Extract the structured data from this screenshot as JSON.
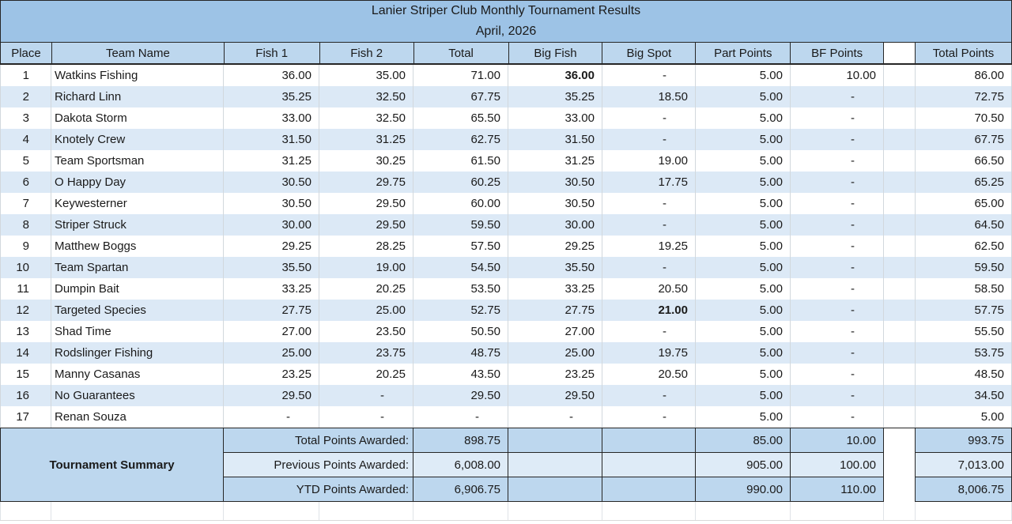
{
  "title": {
    "line1": "Lanier Striper Club Monthly Tournament Results",
    "line2": "April, 2026"
  },
  "columns": [
    "Place",
    "Team Name",
    "Fish 1",
    "Fish 2",
    "Total",
    "Big Fish",
    "Big Spot",
    "Part Points",
    "BF Points",
    "",
    "Total Points"
  ],
  "rows": [
    {
      "place": "1",
      "team": "Watkins Fishing",
      "fish1": "36.00",
      "fish2": "35.00",
      "total": "71.00",
      "big_fish": "36.00",
      "big_spot": "-",
      "part_points": "5.00",
      "bf_points": "10.00",
      "total_points": "86.00",
      "bold": [
        "big_fish"
      ]
    },
    {
      "place": "2",
      "team": "Richard Linn",
      "fish1": "35.25",
      "fish2": "32.50",
      "total": "67.75",
      "big_fish": "35.25",
      "big_spot": "18.50",
      "part_points": "5.00",
      "bf_points": "-",
      "total_points": "72.75",
      "bold": []
    },
    {
      "place": "3",
      "team": "Dakota Storm",
      "fish1": "33.00",
      "fish2": "32.50",
      "total": "65.50",
      "big_fish": "33.00",
      "big_spot": "-",
      "part_points": "5.00",
      "bf_points": "-",
      "total_points": "70.50",
      "bold": []
    },
    {
      "place": "4",
      "team": "Knotely Crew",
      "fish1": "31.50",
      "fish2": "31.25",
      "total": "62.75",
      "big_fish": "31.50",
      "big_spot": "-",
      "part_points": "5.00",
      "bf_points": "-",
      "total_points": "67.75",
      "bold": []
    },
    {
      "place": "5",
      "team": "Team Sportsman",
      "fish1": "31.25",
      "fish2": "30.25",
      "total": "61.50",
      "big_fish": "31.25",
      "big_spot": "19.00",
      "part_points": "5.00",
      "bf_points": "-",
      "total_points": "66.50",
      "bold": []
    },
    {
      "place": "6",
      "team": "O Happy Day",
      "fish1": "30.50",
      "fish2": "29.75",
      "total": "60.25",
      "big_fish": "30.50",
      "big_spot": "17.75",
      "part_points": "5.00",
      "bf_points": "-",
      "total_points": "65.25",
      "bold": []
    },
    {
      "place": "7",
      "team": "Keywesterner",
      "fish1": "30.50",
      "fish2": "29.50",
      "total": "60.00",
      "big_fish": "30.50",
      "big_spot": "-",
      "part_points": "5.00",
      "bf_points": "-",
      "total_points": "65.00",
      "bold": []
    },
    {
      "place": "8",
      "team": "Striper Struck",
      "fish1": "30.00",
      "fish2": "29.50",
      "total": "59.50",
      "big_fish": "30.00",
      "big_spot": "-",
      "part_points": "5.00",
      "bf_points": "-",
      "total_points": "64.50",
      "bold": []
    },
    {
      "place": "9",
      "team": "Matthew Boggs",
      "fish1": "29.25",
      "fish2": "28.25",
      "total": "57.50",
      "big_fish": "29.25",
      "big_spot": "19.25",
      "part_points": "5.00",
      "bf_points": "-",
      "total_points": "62.50",
      "bold": []
    },
    {
      "place": "10",
      "team": "Team Spartan",
      "fish1": "35.50",
      "fish2": "19.00",
      "total": "54.50",
      "big_fish": "35.50",
      "big_spot": "-",
      "part_points": "5.00",
      "bf_points": "-",
      "total_points": "59.50",
      "bold": []
    },
    {
      "place": "11",
      "team": "Dumpin Bait",
      "fish1": "33.25",
      "fish2": "20.25",
      "total": "53.50",
      "big_fish": "33.25",
      "big_spot": "20.50",
      "part_points": "5.00",
      "bf_points": "-",
      "total_points": "58.50",
      "bold": []
    },
    {
      "place": "12",
      "team": "Targeted Species",
      "fish1": "27.75",
      "fish2": "25.00",
      "total": "52.75",
      "big_fish": "27.75",
      "big_spot": "21.00",
      "part_points": "5.00",
      "bf_points": "-",
      "total_points": "57.75",
      "bold": [
        "big_spot"
      ]
    },
    {
      "place": "13",
      "team": "Shad Time",
      "fish1": "27.00",
      "fish2": "23.50",
      "total": "50.50",
      "big_fish": "27.00",
      "big_spot": "-",
      "part_points": "5.00",
      "bf_points": "-",
      "total_points": "55.50",
      "bold": []
    },
    {
      "place": "14",
      "team": "Rodslinger Fishing",
      "fish1": "25.00",
      "fish2": "23.75",
      "total": "48.75",
      "big_fish": "25.00",
      "big_spot": "19.75",
      "part_points": "5.00",
      "bf_points": "-",
      "total_points": "53.75",
      "bold": []
    },
    {
      "place": "15",
      "team": "Manny Casanas",
      "fish1": "23.25",
      "fish2": "20.25",
      "total": "43.50",
      "big_fish": "23.25",
      "big_spot": "20.50",
      "part_points": "5.00",
      "bf_points": "-",
      "total_points": "48.50",
      "bold": []
    },
    {
      "place": "16",
      "team": "No Guarantees",
      "fish1": "29.50",
      "fish2": "-",
      "total": "29.50",
      "big_fish": "29.50",
      "big_spot": "-",
      "part_points": "5.00",
      "bf_points": "-",
      "total_points": "34.50",
      "bold": []
    },
    {
      "place": "17",
      "team": "Renan Souza",
      "fish1": "-",
      "fish2": "-",
      "total": "-",
      "big_fish": "-",
      "big_spot": "-",
      "part_points": "5.00",
      "bf_points": "-",
      "total_points": "5.00",
      "bold": []
    }
  ],
  "summary": {
    "title": "Tournament Summary",
    "rows": [
      {
        "label": "Total Points Awarded:",
        "total": "898.75",
        "part_points": "85.00",
        "bf_points": "10.00",
        "total_points": "993.75",
        "shade": "medium"
      },
      {
        "label": "Previous Points Awarded:",
        "total": "6,008.00",
        "part_points": "905.00",
        "bf_points": "100.00",
        "total_points": "7,013.00",
        "shade": "light"
      },
      {
        "label": "YTD Points Awarded:",
        "total": "6,906.75",
        "part_points": "990.00",
        "bf_points": "110.00",
        "total_points": "8,006.75",
        "shade": "medium"
      }
    ]
  },
  "colors": {
    "title_bg": "#9DC3E6",
    "header_bg": "#BDD7EE",
    "stripe_bg": "#DCE9F6",
    "summary_bg": "#BDD7EE",
    "summary_alt_bg": "#DEEBF7",
    "border_dark": "#262626",
    "grid_line": "#d2d8dd",
    "text": "#1a1a1a"
  }
}
